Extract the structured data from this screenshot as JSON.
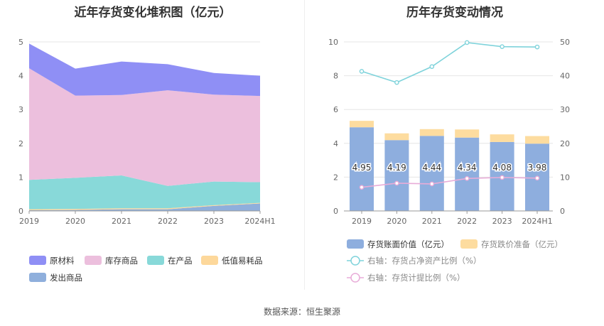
{
  "chart_data": [
    {
      "type": "area",
      "stacked": true,
      "title": "近年存货变化堆积图（亿元）",
      "categories": [
        "2019",
        "2020",
        "2021",
        "2022",
        "2023",
        "2024H1"
      ],
      "ylim": [
        0,
        5
      ],
      "yticks": [
        "0",
        "1",
        "2",
        "3",
        "4",
        "5"
      ],
      "series": [
        {
          "name": "发出商品",
          "color": "#8fafdc",
          "values": [
            0.02,
            0.03,
            0.05,
            0.05,
            0.15,
            0.22
          ]
        },
        {
          "name": "低值易耗品",
          "color": "#fdd89b",
          "values": [
            0.03,
            0.03,
            0.03,
            0.03,
            0.02,
            0.02
          ]
        },
        {
          "name": "在产品",
          "color": "#88d9d9",
          "values": [
            0.87,
            0.92,
            0.97,
            0.66,
            0.7,
            0.61
          ]
        },
        {
          "name": "库存商品",
          "color": "#ecbfdd",
          "values": [
            3.3,
            2.43,
            2.38,
            2.83,
            2.57,
            2.55
          ]
        },
        {
          "name": "原材料",
          "color": "#8f8ff5",
          "values": [
            0.73,
            0.8,
            0.99,
            0.77,
            0.64,
            0.6
          ]
        }
      ],
      "legend": [
        {
          "name": "原材料",
          "color": "#8f8ff5"
        },
        {
          "name": "库存商品",
          "color": "#ecbfdd"
        },
        {
          "name": "在产品",
          "color": "#88d9d9"
        },
        {
          "name": "低值易耗品",
          "color": "#fdd89b"
        },
        {
          "name": "发出商品",
          "color": "#8fafdc"
        }
      ]
    },
    {
      "type": "bar",
      "title": "历年存货变动情况",
      "categories": [
        "2019",
        "2020",
        "2021",
        "2022",
        "2023",
        "2024H1"
      ],
      "ylim": [
        0,
        10
      ],
      "yticks": [
        "0",
        "2",
        "4",
        "6",
        "8",
        "10"
      ],
      "y2lim": [
        0,
        50
      ],
      "y2ticks": [
        "0",
        "10",
        "20",
        "30",
        "40",
        "50"
      ],
      "series": [
        {
          "name": "存货账面价值（亿元）",
          "color": "#8eaede",
          "values": [
            4.95,
            4.19,
            4.44,
            4.34,
            4.08,
            3.98
          ],
          "labels": [
            "4.95",
            "4.19",
            "4.44",
            "4.34",
            "4.08",
            "3.98"
          ]
        },
        {
          "name": "存货跌价准备（亿元）",
          "color": "#fddc9f",
          "values": [
            0.38,
            0.4,
            0.4,
            0.48,
            0.45,
            0.45
          ]
        },
        {
          "name": "右轴：存货占净资产比例（%）",
          "color": "#7fd3db",
          "axis": "right",
          "values": [
            41.3,
            38.0,
            42.7,
            49.8,
            48.6,
            48.5
          ]
        },
        {
          "name": "右轴：存货计提比例（%）",
          "color": "#e8acd8",
          "axis": "right",
          "values": [
            7.0,
            8.2,
            8.0,
            9.6,
            9.9,
            9.7
          ]
        }
      ]
    }
  ],
  "source_text": "数据来源：恒生聚源"
}
